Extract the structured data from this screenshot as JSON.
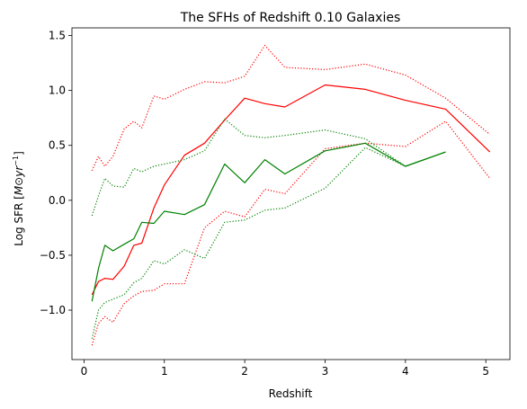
{
  "chart_data": {
    "type": "line",
    "title": "The SFHs of Redshift 0.10 Galaxies",
    "xlabel": "Redshift",
    "ylabel_main": "Log SFR [",
    "ylabel_math": "M⊙yr",
    "ylabel_sup": "−1",
    "ylabel_end": "]",
    "xlim": [
      -0.15,
      5.3
    ],
    "ylim": [
      -1.45,
      1.57
    ],
    "xticks": [
      0,
      1,
      2,
      3,
      4,
      5
    ],
    "xtick_labels": [
      "0",
      "1",
      "2",
      "3",
      "4",
      "5"
    ],
    "yticks": [
      -1.0,
      -0.5,
      0.0,
      0.5,
      1.0,
      1.5
    ],
    "ytick_labels": [
      "−1.0",
      "−0.5",
      "0.0",
      "0.5",
      "1.0",
      "1.5"
    ],
    "grid": false,
    "series": [
      {
        "color": "#ff0000",
        "style": "solid",
        "x": [
          0.1,
          0.18,
          0.26,
          0.36,
          0.5,
          0.62,
          0.72,
          0.87,
          1.0,
          1.25,
          1.5,
          1.75,
          2.0,
          2.25,
          2.5,
          3.0,
          3.5,
          4.0,
          4.5,
          5.05
        ],
        "y": [
          -0.86,
          -0.74,
          -0.71,
          -0.72,
          -0.6,
          -0.41,
          -0.39,
          -0.07,
          0.14,
          0.41,
          0.52,
          0.73,
          0.93,
          0.88,
          0.85,
          1.05,
          1.01,
          0.91,
          0.83,
          0.44
        ]
      },
      {
        "color": "#ff0000",
        "style": "dotted",
        "x": [
          0.1,
          0.18,
          0.26,
          0.36,
          0.5,
          0.62,
          0.72,
          0.87,
          1.0,
          1.25,
          1.5,
          1.75,
          2.0,
          2.25,
          2.5,
          3.0,
          3.5,
          4.0,
          4.5,
          5.05
        ],
        "y": [
          0.27,
          0.4,
          0.31,
          0.4,
          0.65,
          0.72,
          0.66,
          0.95,
          0.92,
          1.01,
          1.08,
          1.07,
          1.13,
          1.41,
          1.21,
          1.19,
          1.24,
          1.14,
          0.93,
          0.6
        ]
      },
      {
        "color": "#ff0000",
        "style": "dotted",
        "x": [
          0.1,
          0.18,
          0.26,
          0.36,
          0.5,
          0.62,
          0.72,
          0.87,
          1.0,
          1.25,
          1.5,
          1.75,
          2.0,
          2.25,
          2.5,
          3.0,
          3.5,
          4.0,
          4.5,
          5.05
        ],
        "y": [
          -1.32,
          -1.12,
          -1.06,
          -1.11,
          -0.94,
          -0.87,
          -0.83,
          -0.82,
          -0.76,
          -0.76,
          -0.25,
          -0.1,
          -0.15,
          0.1,
          0.06,
          0.47,
          0.52,
          0.49,
          0.72,
          0.2
        ]
      },
      {
        "color": "#008000",
        "style": "solid",
        "x": [
          0.1,
          0.18,
          0.26,
          0.36,
          0.5,
          0.62,
          0.72,
          0.87,
          1.0,
          1.25,
          1.5,
          1.75,
          2.0,
          2.25,
          2.5,
          3.0,
          3.5,
          4.0,
          4.5
        ],
        "y": [
          -0.92,
          -0.62,
          -0.41,
          -0.46,
          -0.4,
          -0.35,
          -0.2,
          -0.21,
          -0.1,
          -0.13,
          -0.04,
          0.33,
          0.16,
          0.37,
          0.24,
          0.45,
          0.52,
          0.31,
          0.44
        ]
      },
      {
        "color": "#008000",
        "style": "dotted",
        "x": [
          0.1,
          0.18,
          0.26,
          0.36,
          0.5,
          0.62,
          0.72,
          0.87,
          1.0,
          1.25,
          1.5,
          1.75,
          2.0,
          2.25,
          2.5,
          3.0,
          3.5,
          4.0,
          4.5
        ],
        "y": [
          -0.14,
          0.04,
          0.2,
          0.13,
          0.12,
          0.29,
          0.26,
          0.31,
          0.33,
          0.37,
          0.45,
          0.74,
          0.59,
          0.57,
          0.59,
          0.64,
          0.56,
          0.31,
          0.44
        ]
      },
      {
        "color": "#008000",
        "style": "dotted",
        "x": [
          0.1,
          0.18,
          0.26,
          0.36,
          0.5,
          0.62,
          0.72,
          0.87,
          1.0,
          1.25,
          1.5,
          1.75,
          2.0,
          2.25,
          2.5,
          3.0,
          3.5,
          4.0,
          4.5
        ],
        "y": [
          -1.26,
          -1.0,
          -0.93,
          -0.9,
          -0.86,
          -0.75,
          -0.71,
          -0.55,
          -0.58,
          -0.45,
          -0.53,
          -0.2,
          -0.18,
          -0.09,
          -0.07,
          0.11,
          0.48,
          0.31,
          0.44
        ]
      }
    ]
  }
}
